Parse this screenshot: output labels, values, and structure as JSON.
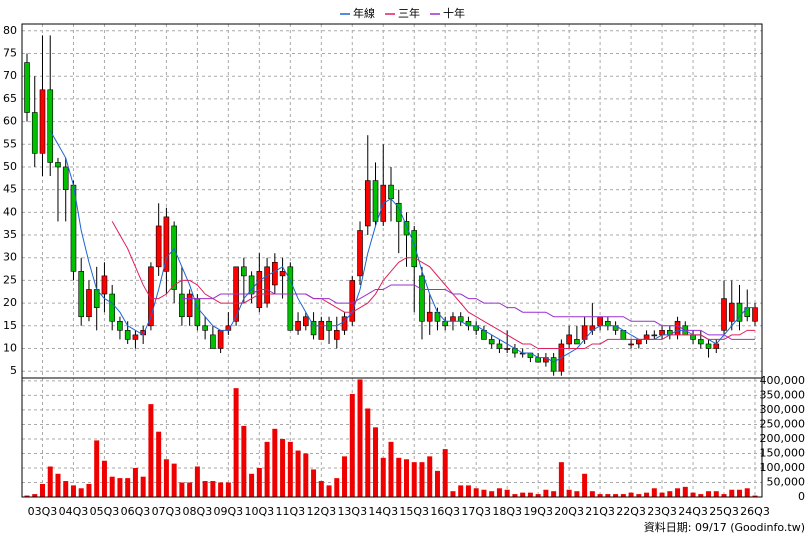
{
  "chart_data": [
    {
      "type": "candlestick",
      "open": [
        73,
        62,
        53,
        67,
        51,
        50,
        46,
        27,
        17,
        23,
        22,
        22,
        16,
        14,
        12,
        13,
        15,
        28,
        27,
        37,
        22,
        17,
        21,
        15,
        13,
        10,
        14,
        16,
        28,
        26,
        19,
        20,
        24,
        26,
        28,
        14,
        15,
        16,
        12,
        16,
        12,
        14,
        16,
        26,
        37,
        47,
        38,
        46,
        42,
        38,
        36,
        26,
        16,
        18,
        16,
        16,
        17,
        16,
        15,
        14,
        12,
        11,
        10,
        10,
        9,
        9,
        8,
        7,
        8,
        5,
        11,
        12,
        12,
        14,
        15,
        16,
        15,
        14,
        11,
        11,
        12,
        13,
        13,
        14,
        13,
        15,
        13,
        12,
        11,
        10,
        14,
        16,
        20,
        19,
        16
      ],
      "high": [
        75,
        70,
        79,
        79,
        52,
        52,
        47,
        30,
        25,
        28,
        29,
        24,
        17,
        16,
        14,
        15,
        29,
        42,
        41,
        38,
        28,
        23,
        22,
        17,
        15,
        14,
        18,
        28,
        30,
        27,
        31,
        30,
        31,
        30,
        29,
        18,
        18,
        18,
        17,
        17,
        17,
        18,
        26,
        38,
        57,
        51,
        55,
        50,
        45,
        40,
        37,
        28,
        22,
        19,
        17,
        18,
        18,
        17,
        16,
        15,
        13,
        12,
        14,
        11,
        10,
        9,
        9,
        9,
        9,
        12,
        15,
        15,
        17,
        20,
        17,
        17,
        16,
        14,
        12,
        12,
        14,
        14,
        15,
        15,
        17,
        16,
        14,
        14,
        12,
        12,
        25,
        25,
        24,
        23,
        20
      ],
      "low": [
        60,
        50,
        48,
        48,
        38,
        38,
        25,
        15,
        16,
        14,
        18,
        14,
        12,
        11,
        10,
        11,
        14,
        26,
        22,
        20,
        15,
        15,
        14,
        12,
        10,
        9,
        13,
        15,
        20,
        20,
        18,
        19,
        22,
        21,
        14,
        13,
        14,
        12,
        12,
        11,
        10,
        13,
        15,
        24,
        35,
        37,
        37,
        38,
        31,
        28,
        18,
        12,
        13,
        14,
        14,
        14,
        15,
        14,
        13,
        12,
        10,
        9,
        9,
        8,
        8,
        7,
        7,
        6,
        4,
        4,
        10,
        11,
        11,
        13,
        14,
        14,
        13,
        12,
        10,
        10,
        11,
        12,
        12,
        12,
        12,
        13,
        11,
        10,
        8,
        9,
        13,
        14,
        14,
        16,
        15
      ],
      "close": [
        62,
        53,
        67,
        51,
        50,
        45,
        27,
        17,
        23,
        19,
        26,
        16,
        14,
        12,
        13,
        14,
        28,
        37,
        39,
        23,
        17,
        22,
        15,
        14,
        10,
        14,
        15,
        28,
        26,
        22,
        27,
        28,
        29,
        27,
        14,
        16,
        17,
        13,
        16,
        14,
        14,
        17,
        25,
        36,
        47,
        38,
        46,
        43,
        38,
        35,
        28,
        16,
        18,
        16,
        15,
        17,
        16,
        15,
        14,
        12,
        11,
        10,
        10,
        9,
        9,
        8,
        7,
        8,
        5,
        11,
        13,
        11,
        15,
        15,
        17,
        15,
        14,
        12,
        11,
        12,
        13,
        13,
        14,
        13,
        16,
        13,
        12,
        11,
        10,
        11,
        21,
        20,
        16,
        17,
        19
      ],
      "up_color": "#ff0000",
      "down_color": "#00c000",
      "series": [
        {
          "name": "年線",
          "color": "#1e64d2",
          "values": [
            null,
            null,
            null,
            58,
            55,
            52,
            46,
            36,
            29,
            23,
            21,
            20,
            18,
            15,
            14,
            13,
            17,
            23,
            30,
            32,
            28,
            24,
            19,
            17,
            15,
            14,
            14,
            17,
            21,
            23,
            25,
            26,
            27,
            28,
            25,
            21,
            18,
            15,
            15,
            15,
            15,
            16,
            18,
            23,
            31,
            37,
            42,
            43,
            41,
            37,
            33,
            27,
            22,
            18,
            16,
            16,
            16,
            15,
            15,
            14,
            13,
            12,
            11,
            10,
            9,
            9,
            8,
            8,
            7,
            8,
            9,
            10,
            12,
            14,
            15,
            15,
            15,
            14,
            13,
            12,
            12,
            12,
            13,
            13,
            14,
            14,
            13,
            13,
            12,
            11,
            13,
            15,
            17,
            19,
            19
          ]
        },
        {
          "name": "三年",
          "color": "#e0205a",
          "values": [
            null,
            null,
            null,
            null,
            null,
            null,
            null,
            null,
            null,
            null,
            null,
            38,
            35,
            32,
            28,
            24,
            21,
            21,
            22,
            24,
            25,
            25,
            24,
            22,
            21,
            20,
            20,
            20,
            20,
            21,
            22,
            22,
            22,
            22,
            22,
            22,
            22,
            21,
            21,
            20,
            19,
            18,
            18,
            19,
            20,
            22,
            25,
            27,
            29,
            30,
            30,
            29,
            28,
            26,
            24,
            22,
            20,
            18,
            17,
            16,
            15,
            14,
            13,
            12,
            11,
            11,
            10,
            10,
            10,
            10,
            10,
            10,
            10,
            11,
            11,
            12,
            12,
            12,
            12,
            12,
            12,
            12,
            12,
            13,
            13,
            13,
            13,
            13,
            12,
            12,
            12,
            13,
            13,
            14,
            14
          ]
        },
        {
          "name": "十年",
          "color": "#9a30d0",
          "values": [
            null,
            null,
            null,
            null,
            null,
            null,
            null,
            null,
            null,
            null,
            null,
            null,
            null,
            null,
            null,
            null,
            null,
            null,
            null,
            null,
            21,
            21,
            21,
            21,
            21,
            22,
            22,
            22,
            22,
            22,
            23,
            23,
            22,
            22,
            22,
            22,
            22,
            21,
            21,
            21,
            20,
            20,
            20,
            21,
            22,
            23,
            23,
            24,
            24,
            24,
            24,
            23,
            23,
            23,
            23,
            22,
            22,
            21,
            21,
            20,
            20,
            20,
            19,
            19,
            18,
            18,
            18,
            18,
            17,
            17,
            17,
            17,
            17,
            17,
            17,
            17,
            17,
            17,
            16,
            16,
            16,
            16,
            15,
            15,
            15,
            14,
            14,
            14,
            13,
            13,
            13,
            12,
            12,
            12,
            12
          ]
        }
      ],
      "ylim": [
        3.5,
        81.5
      ],
      "yticks": [
        5,
        10,
        15,
        20,
        25,
        30,
        35,
        40,
        45,
        50,
        55,
        60,
        65,
        70,
        75,
        80
      ],
      "grid": true
    },
    {
      "type": "bar",
      "categories": [
        null,
        null,
        "03Q3",
        null,
        null,
        null,
        "04Q3",
        null,
        null,
        null,
        "05Q3",
        null,
        null,
        null,
        "06Q3",
        null,
        null,
        null,
        "07Q3",
        null,
        null,
        null,
        "08Q3",
        null,
        null,
        null,
        "09Q3",
        null,
        null,
        null,
        "10Q3",
        null,
        null,
        null,
        "11Q3",
        null,
        null,
        null,
        "12Q3",
        null,
        null,
        null,
        "13Q3",
        null,
        null,
        null,
        "14Q3",
        null,
        null,
        null,
        "15Q3",
        null,
        null,
        null,
        "16Q3",
        null,
        null,
        null,
        "17Q3",
        null,
        null,
        null,
        "18Q3",
        null,
        null,
        null,
        "19Q3",
        null,
        null,
        null,
        "20Q3",
        null,
        null,
        null,
        "21Q3",
        null,
        null,
        null,
        "22Q3",
        null,
        null,
        null,
        "23Q3",
        null,
        null,
        null,
        "24Q3",
        null,
        null,
        null,
        "25Q3",
        null,
        null,
        null,
        "26Q3"
      ],
      "values": [
        5000,
        10000,
        45000,
        105000,
        80000,
        55000,
        40000,
        30000,
        45000,
        195000,
        125000,
        70000,
        65000,
        65000,
        100000,
        70000,
        320000,
        225000,
        130000,
        115000,
        50000,
        50000,
        105000,
        55000,
        55000,
        50000,
        50000,
        375000,
        245000,
        80000,
        100000,
        190000,
        235000,
        200000,
        190000,
        160000,
        150000,
        95000,
        55000,
        40000,
        65000,
        140000,
        355000,
        405000,
        305000,
        240000,
        135000,
        190000,
        135000,
        130000,
        120000,
        120000,
        140000,
        90000,
        165000,
        20000,
        40000,
        40000,
        30000,
        25000,
        20000,
        30000,
        25000,
        10000,
        15000,
        15000,
        10000,
        25000,
        20000,
        120000,
        25000,
        20000,
        80000,
        20000,
        10000,
        10000,
        10000,
        10000,
        15000,
        10000,
        15000,
        30000,
        15000,
        20000,
        30000,
        35000,
        15000,
        10000,
        20000,
        20000,
        10000,
        25000,
        25000,
        30000,
        5000
      ],
      "color": "#ee0000",
      "ylim": [
        0,
        410000
      ],
      "yticks": [
        0,
        {
          "value": 50000,
          "label": "50,000"
        },
        {
          "value": 100000,
          "label": "100,000"
        },
        {
          "value": 150000,
          "label": "150,000"
        },
        {
          "value": 200000,
          "label": "200,000"
        },
        {
          "value": 250000,
          "label": "250,000"
        },
        {
          "value": 300000,
          "label": "300,000"
        },
        {
          "value": 350000,
          "label": "350,000"
        },
        {
          "value": 400000,
          "label": "400,000"
        }
      ],
      "grid": true,
      "source": "資料日期: 09/17  (Goodinfo.tw)"
    }
  ]
}
